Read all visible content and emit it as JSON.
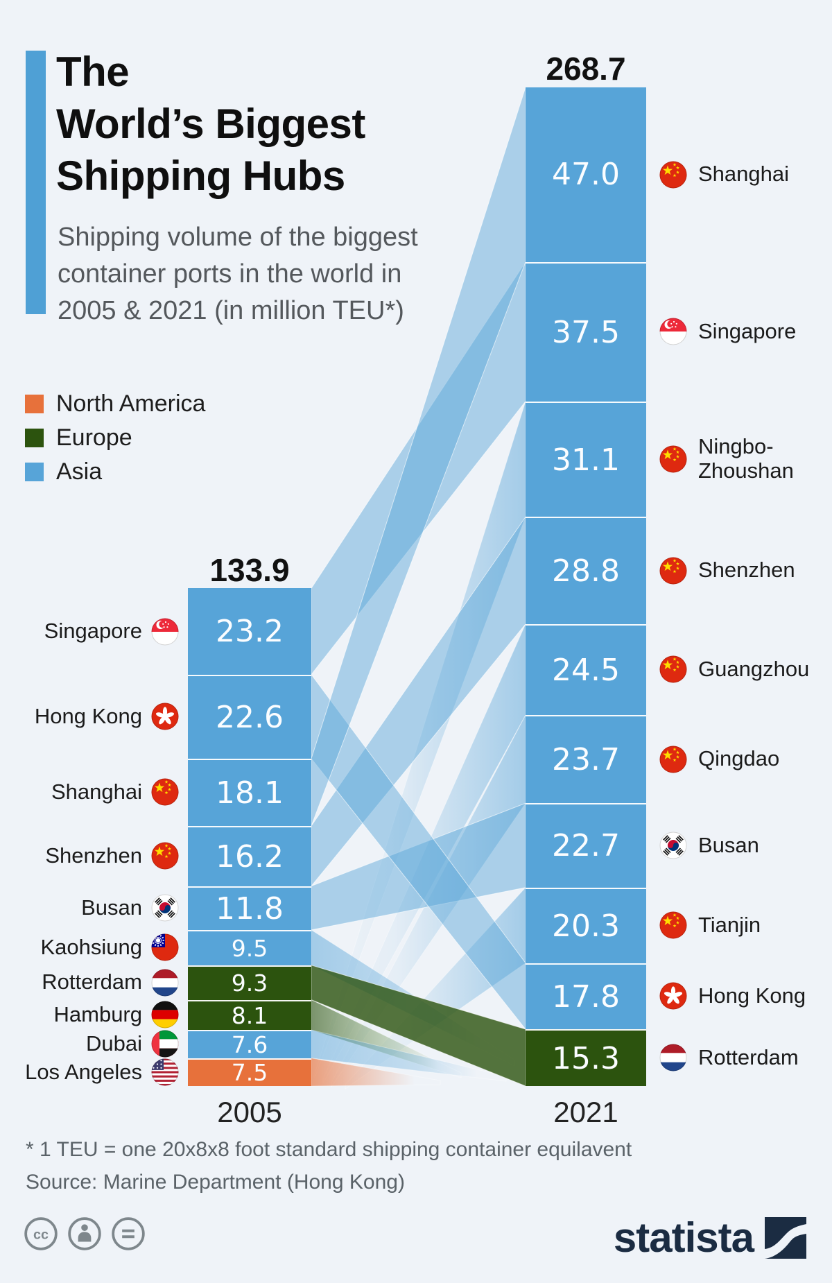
{
  "header": {
    "title": "The\nWorld’s Biggest\nShipping Hubs",
    "subtitle": "Shipping volume of the biggest\ncontainer ports in the world in\n2005 & 2021 (in million TEU*)",
    "accent_color": "#4FA0D5"
  },
  "legend": {
    "items": [
      {
        "label": "North America",
        "region": "North America",
        "color": "#E7713B"
      },
      {
        "label": "Europe",
        "region": "Europe",
        "color": "#2C530E"
      },
      {
        "label": "Asia",
        "region": "Asia",
        "color": "#57A4D8"
      }
    ]
  },
  "chart_data": {
    "type": "slope-sankey",
    "unit": "million TEU",
    "title": "The World’s Biggest Shipping Hubs",
    "region_colors": {
      "North America": "#E7713B",
      "Europe": "#2C530E",
      "Asia": "#57A4D8"
    },
    "columns": [
      {
        "year": "2005",
        "total": 133.9,
        "ports": [
          {
            "name": "Singapore",
            "value": 23.2,
            "region": "Asia",
            "flag": "sg"
          },
          {
            "name": "Hong Kong",
            "value": 22.6,
            "region": "Asia",
            "flag": "hk"
          },
          {
            "name": "Shanghai",
            "value": 18.1,
            "region": "Asia",
            "flag": "cn"
          },
          {
            "name": "Shenzhen",
            "value": 16.2,
            "region": "Asia",
            "flag": "cn"
          },
          {
            "name": "Busan",
            "value": 11.8,
            "region": "Asia",
            "flag": "kr"
          },
          {
            "name": "Kaohsiung",
            "value": 9.5,
            "region": "Asia",
            "flag": "tw"
          },
          {
            "name": "Rotterdam",
            "value": 9.3,
            "region": "Europe",
            "flag": "nl"
          },
          {
            "name": "Hamburg",
            "value": 8.1,
            "region": "Europe",
            "flag": "de"
          },
          {
            "name": "Dubai",
            "value": 7.6,
            "region": "Asia",
            "flag": "ae"
          },
          {
            "name": "Los Angeles",
            "value": 7.5,
            "region": "North America",
            "flag": "us"
          }
        ]
      },
      {
        "year": "2021",
        "total": 268.7,
        "ports": [
          {
            "name": "Shanghai",
            "value": 47.0,
            "region": "Asia",
            "flag": "cn"
          },
          {
            "name": "Singapore",
            "value": 37.5,
            "region": "Asia",
            "flag": "sg"
          },
          {
            "name": "Ningbo-Zhoushan",
            "value": 31.1,
            "region": "Asia",
            "flag": "cn",
            "display": "Ningbo-\nZhoushan"
          },
          {
            "name": "Shenzhen",
            "value": 28.8,
            "region": "Asia",
            "flag": "cn"
          },
          {
            "name": "Guangzhou",
            "value": 24.5,
            "region": "Asia",
            "flag": "cn"
          },
          {
            "name": "Qingdao",
            "value": 23.7,
            "region": "Asia",
            "flag": "cn"
          },
          {
            "name": "Busan",
            "value": 22.7,
            "region": "Asia",
            "flag": "kr"
          },
          {
            "name": "Tianjin",
            "value": 20.3,
            "region": "Asia",
            "flag": "cn"
          },
          {
            "name": "Hong Kong",
            "value": 17.8,
            "region": "Asia",
            "flag": "hk"
          },
          {
            "name": "Rotterdam",
            "value": 15.3,
            "region": "Europe",
            "flag": "nl"
          }
        ]
      }
    ],
    "flows": {
      "persistent": [
        "Shenzhen",
        "Busan",
        "Singapore",
        "Hong Kong",
        "Shanghai",
        "Rotterdam"
      ],
      "fade_out_2005": [
        "Kaohsiung",
        "Hamburg",
        "Dubai",
        "Los Angeles"
      ],
      "fade_in_2021": [
        "Ningbo-Zhoushan",
        "Guangzhou",
        "Qingdao",
        "Tianjin"
      ]
    }
  },
  "footer": {
    "footnote": "* 1 TEU = one 20x8x8 foot standard shipping container equilavent",
    "source": "Source: Marine Department (Hong Kong)",
    "logo_text": "statista",
    "license_icons": [
      "cc",
      "attribution",
      "no-derivatives"
    ]
  },
  "colors": {
    "background": "#EFF3F8",
    "text_dark": "#1B1B1B",
    "text_gray": "#54585C",
    "statista_navy": "#1B2C42",
    "icon_gray": "#7E878C"
  }
}
